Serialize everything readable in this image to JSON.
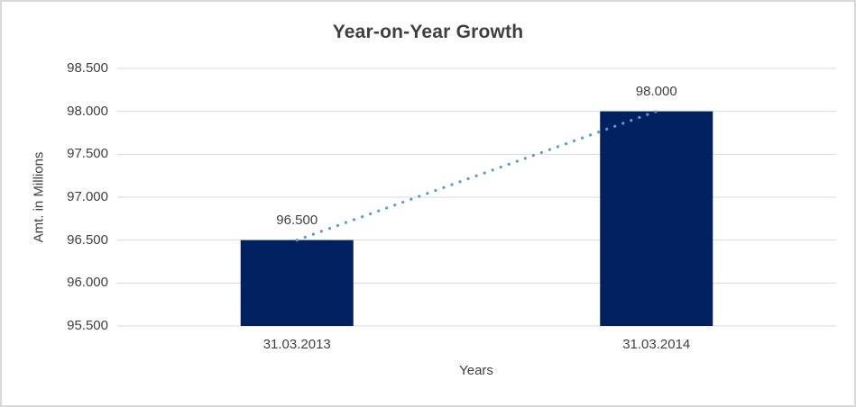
{
  "chart_data": {
    "type": "bar",
    "title": "Year-on-Year Growth",
    "xlabel": "Years",
    "ylabel": "Amt. in Millions",
    "categories": [
      "31.03.2013",
      "31.03.2014"
    ],
    "values": [
      96.5,
      98.0
    ],
    "data_labels": [
      "96.500",
      "98.000"
    ],
    "y_ticks": [
      "98.500",
      "98.000",
      "97.500",
      "97.000",
      "96.500",
      "96.000",
      "95.500"
    ],
    "y_tick_values": [
      98.5,
      98.0,
      97.5,
      97.0,
      96.5,
      96.0,
      95.5
    ],
    "ylim": [
      95.5,
      98.5
    ],
    "grid": true,
    "legend": false,
    "trendline": {
      "style": "dotted",
      "connects": [
        "bar-1-top",
        "bar-2-top"
      ]
    },
    "colors": {
      "bar": "#002060",
      "trendline": "#5b9bd5",
      "gridline": "#d9d9d9",
      "text": "#404040",
      "title_text": "#3f3f3f",
      "frame_border": "#d9d9d9",
      "background": "#ffffff"
    }
  }
}
